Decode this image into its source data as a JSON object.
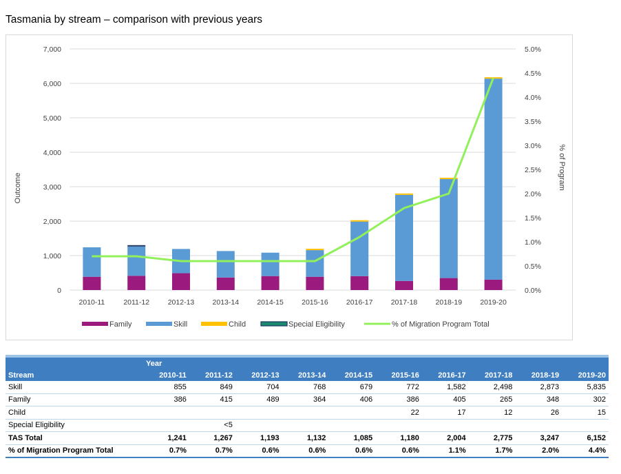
{
  "title": "Tasmania by stream – comparison with previous years",
  "chart_data": {
    "type": "bar",
    "stacked": true,
    "categories": [
      "2010-11",
      "2011-12",
      "2012-13",
      "2013-14",
      "2014-15",
      "2015-16",
      "2016-17",
      "2017-18",
      "2018-19",
      "2019-20"
    ],
    "series": [
      {
        "name": "Family",
        "values": [
          386,
          415,
          489,
          364,
          406,
          386,
          405,
          265,
          348,
          302
        ],
        "color": "#9b1a7e"
      },
      {
        "name": "Skill",
        "values": [
          855,
          849,
          704,
          768,
          679,
          772,
          1582,
          2498,
          2873,
          5835
        ],
        "color": "#5b9bd5"
      },
      {
        "name": "Child",
        "values": [
          0,
          0,
          0,
          0,
          0,
          22,
          17,
          12,
          26,
          15
        ],
        "color": "#ffc000"
      },
      {
        "name": "Special Eligibility",
        "values": [
          0,
          3,
          0,
          0,
          0,
          0,
          0,
          0,
          0,
          0
        ],
        "color": "#1f3864"
      }
    ],
    "line_series": {
      "name": "% of Migration Program Total",
      "values": [
        0.7,
        0.7,
        0.6,
        0.6,
        0.6,
        0.6,
        1.1,
        1.7,
        2.0,
        4.4
      ],
      "color": "#92f05a",
      "axis": "right"
    },
    "ylabel": "Outcome",
    "ylabel_right": "% of Program",
    "ylim": [
      0,
      7000
    ],
    "ylim_right": [
      0,
      5.0
    ],
    "yticks": [
      "0",
      "1,000",
      "2,000",
      "3,000",
      "4,000",
      "5,000",
      "6,000",
      "7,000"
    ],
    "yticks_right": [
      "0.0%",
      "0.5%",
      "1.0%",
      "1.5%",
      "2.0%",
      "2.5%",
      "3.0%",
      "3.5%",
      "4.0%",
      "4.5%",
      "5.0%"
    ],
    "legend_position": "bottom",
    "grid": true
  },
  "table": {
    "header_year_label": "Year",
    "header_stream_label": "Stream",
    "years": [
      "2010-11",
      "2011-12",
      "2012-13",
      "2013-14",
      "2014-15",
      "2015-16",
      "2016-17",
      "2017-18",
      "2018-19",
      "2019-20"
    ],
    "rows": [
      {
        "label": "Skill",
        "values": [
          "855",
          "849",
          "704",
          "768",
          "679",
          "772",
          "1,582",
          "2,498",
          "2,873",
          "5,835"
        ],
        "bold": false
      },
      {
        "label": "Family",
        "values": [
          "386",
          "415",
          "489",
          "364",
          "406",
          "386",
          "405",
          "265",
          "348",
          "302"
        ],
        "bold": false
      },
      {
        "label": "Child",
        "values": [
          "",
          "",
          "",
          "",
          "",
          "22",
          "17",
          "12",
          "26",
          "15"
        ],
        "bold": false
      },
      {
        "label": "Special Eligibility",
        "values": [
          "",
          "<5",
          "",
          "",
          "",
          "",
          "",
          "",
          "",
          ""
        ],
        "bold": false
      },
      {
        "label": "TAS Total",
        "values": [
          "1,241",
          "1,267",
          "1,193",
          "1,132",
          "1,085",
          "1,180",
          "2,004",
          "2,775",
          "3,247",
          "6,152"
        ],
        "bold": true
      },
      {
        "label": "% of Migration Program Total",
        "values": [
          "0.7%",
          "0.7%",
          "0.6%",
          "0.6%",
          "0.6%",
          "0.6%",
          "1.1%",
          "1.7%",
          "2.0%",
          "4.4%"
        ],
        "bold": true
      }
    ]
  }
}
